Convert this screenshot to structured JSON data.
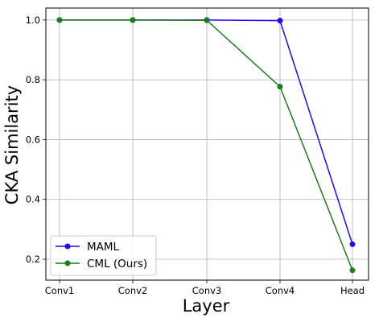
{
  "chart_data": {
    "type": "line",
    "xlabel": "Layer",
    "ylabel": "CKA Similarity",
    "categories": [
      "Conv1",
      "Conv2",
      "Conv3",
      "Conv4",
      "Head"
    ],
    "y_ticks": [
      "0.2",
      "0.4",
      "0.6",
      "0.8",
      "1.0"
    ],
    "ylim": [
      0.13,
      1.04
    ],
    "grid": true,
    "legend_position": "lower-left",
    "series": [
      {
        "name": "MAML",
        "color": "#2a00ff",
        "values": [
          1.0,
          1.0,
          1.0,
          0.998,
          0.25
        ]
      },
      {
        "name": "CML (Ours)",
        "color": "#1a7f1a",
        "values": [
          1.0,
          1.0,
          0.999,
          0.777,
          0.163
        ]
      }
    ]
  }
}
